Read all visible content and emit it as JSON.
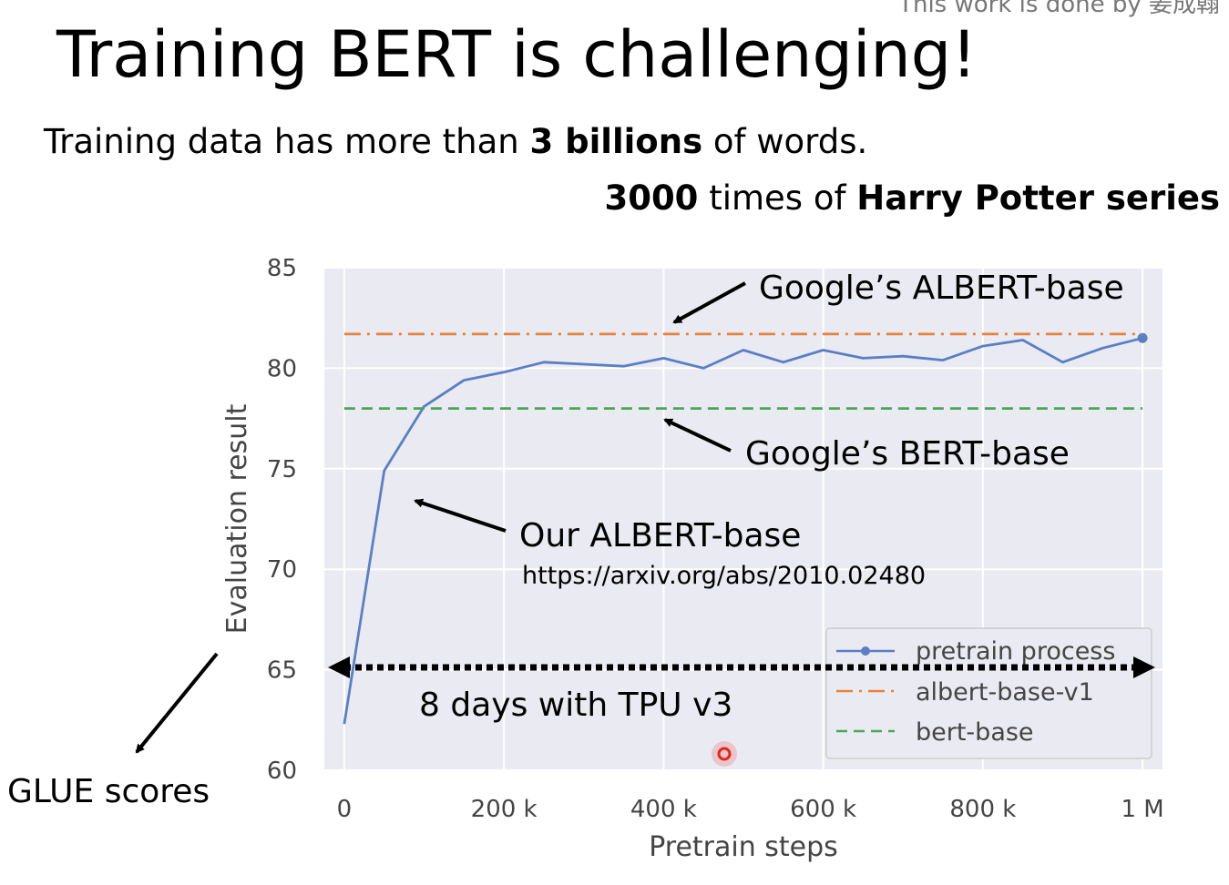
{
  "slide": {
    "title": "Training BERT is challenging!",
    "credit": "This work is done by 姜成翰",
    "line1_prefix": "Training data has more than ",
    "line1_bold": "3 billions",
    "line1_suffix": " of words.",
    "line2_bold1": "3000",
    "line2_middle": " times of ",
    "line2_bold2": "Harry Potter series"
  },
  "chart_data": {
    "type": "line",
    "xlabel": "Pretrain steps",
    "ylabel": "Evaluation result",
    "xlim": [
      -25000,
      1025000
    ],
    "ylim": [
      60,
      85
    ],
    "x_ticks": [
      {
        "value": 0,
        "label": "0"
      },
      {
        "value": 200000,
        "label": "200 k"
      },
      {
        "value": 400000,
        "label": "400 k"
      },
      {
        "value": 600000,
        "label": "600 k"
      },
      {
        "value": 800000,
        "label": "800 k"
      },
      {
        "value": 1000000,
        "label": "1 M"
      }
    ],
    "y_ticks": [
      {
        "value": 60,
        "label": "60"
      },
      {
        "value": 65,
        "label": "65"
      },
      {
        "value": 70,
        "label": "70"
      },
      {
        "value": 75,
        "label": "75"
      },
      {
        "value": 80,
        "label": "80"
      },
      {
        "value": 85,
        "label": "85"
      }
    ],
    "grid": true,
    "legend_position": "lower-right",
    "series": [
      {
        "name": "pretrain process",
        "style": "line",
        "color": "#5a7fc4",
        "x": [
          0,
          50000,
          100000,
          150000,
          200000,
          250000,
          300000,
          350000,
          400000,
          450000,
          500000,
          550000,
          600000,
          650000,
          700000,
          750000,
          800000,
          850000,
          900000,
          950000,
          1000000
        ],
        "y": [
          62.3,
          74.9,
          78.1,
          79.4,
          79.8,
          80.3,
          80.2,
          80.1,
          80.5,
          80.0,
          80.9,
          80.3,
          80.9,
          80.5,
          80.6,
          80.4,
          81.1,
          81.4,
          80.3,
          81.0,
          81.5
        ]
      },
      {
        "name": "albert-base-v1",
        "style": "dashdot",
        "color": "#e8823a",
        "x": [
          0,
          1000000
        ],
        "y": [
          81.7,
          81.7
        ]
      },
      {
        "name": "bert-base",
        "style": "dashed",
        "color": "#4aa557",
        "x": [
          0,
          1000000
        ],
        "y": [
          78.0,
          78.0
        ]
      }
    ],
    "annotations": {
      "google_albert": "Google’s ALBERT-base",
      "google_bert": "Google’s BERT-base",
      "our_albert": "Our ALBERT-base",
      "url": "https://arxiv.org/abs/2010.02480",
      "tpu": "8 days with TPU v3",
      "glue": "GLUE scores"
    }
  },
  "colors": {
    "plot_background": "#eaeaf2",
    "grid": "#ffffff",
    "cursor_marker": "#e8251a"
  }
}
